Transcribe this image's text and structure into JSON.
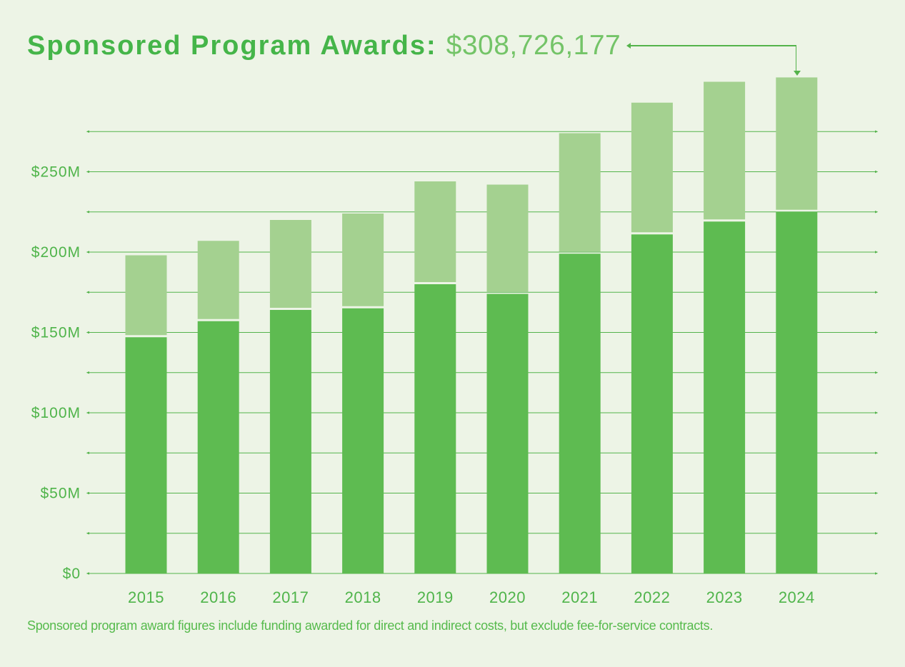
{
  "header": {
    "title": "Sponsored Program Awards:",
    "amount": "$308,726,177"
  },
  "footnote": "Sponsored program award figures include funding awarded for direct and indirect costs, but exclude fee-for-service contracts.",
  "colors": {
    "background": "#edf4e6",
    "title_green": "#45b549",
    "amount_green": "#74c468",
    "dark_bar": "#5ebb51",
    "light_bar": "#a4d190",
    "gridline": "#54b34b",
    "axis_text": "#4fb44a",
    "footnote_text": "#56ba4c",
    "callout_line": "#54b34b"
  },
  "chart_data": {
    "type": "bar",
    "stacked": true,
    "title": "Sponsored Program Awards",
    "units": "USD millions (values estimated from axis; 2024 total stated in title)",
    "categories": [
      "2015",
      "2016",
      "2017",
      "2018",
      "2019",
      "2020",
      "2021",
      "2022",
      "2023",
      "2024"
    ],
    "series": [
      {
        "name": "lower-segment-dark-green",
        "color": "#5ebb51",
        "values": [
          147,
          157,
          164,
          165,
          180,
          174,
          199,
          211,
          219,
          225
        ]
      },
      {
        "name": "upper-segment-light-green",
        "color": "#a4d190",
        "values": [
          51,
          50,
          56,
          59,
          64,
          68,
          75,
          82,
          87,
          83.7
        ]
      }
    ],
    "totals": [
      198,
      207,
      220,
      224,
      244,
      242,
      274,
      293,
      306,
      308.7
    ],
    "y_ticks": [
      {
        "value": 0,
        "label": "$0"
      },
      {
        "value": 50,
        "label": "$50M"
      },
      {
        "value": 100,
        "label": "$100M"
      },
      {
        "value": 150,
        "label": "$150M"
      },
      {
        "value": 200,
        "label": "$200M"
      },
      {
        "value": 250,
        "label": "$250M"
      }
    ],
    "gridline_step": 25,
    "gridline_max": 275,
    "ylim": [
      0,
      312
    ],
    "legend": "none",
    "grid": true,
    "annotation": {
      "text": "$308,726,177",
      "points_to_category": "2024"
    }
  }
}
